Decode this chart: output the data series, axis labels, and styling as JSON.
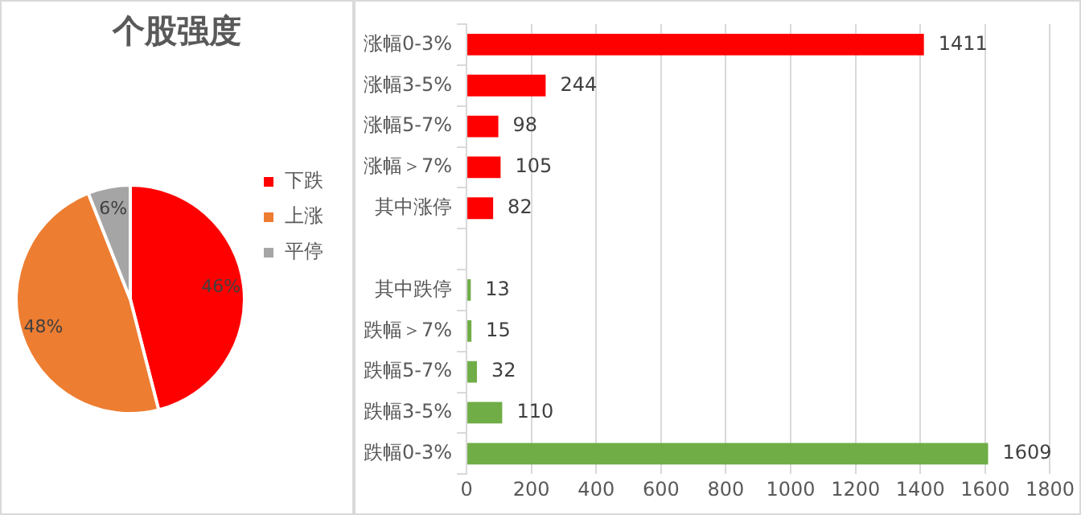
{
  "chart_data": [
    {
      "type": "pie",
      "title": "个股强度",
      "categories": [
        "下跌",
        "上涨",
        "平停"
      ],
      "values": [
        46,
        48,
        6
      ],
      "colors": [
        "#ff0000",
        "#ed7d31",
        "#a5a5a5"
      ],
      "value_labels": [
        "46%",
        "48%",
        "6%"
      ],
      "legend": "right"
    },
    {
      "type": "bar",
      "orientation": "horizontal",
      "categories": [
        "涨幅0-3%",
        "涨幅3-5%",
        "涨幅5-7%",
        "涨幅＞7%",
        "其中涨停",
        null,
        "其中跌停",
        "跌幅＞7%",
        "跌幅5-7%",
        "跌幅3-5%",
        "跌幅0-3%"
      ],
      "values": [
        1411,
        244,
        98,
        105,
        82,
        null,
        13,
        15,
        32,
        110,
        1609
      ],
      "colors": [
        "#ff0000",
        "#ff0000",
        "#ff0000",
        "#ff0000",
        "#ff0000",
        null,
        "#70ad47",
        "#70ad47",
        "#70ad47",
        "#70ad47",
        "#70ad47"
      ],
      "xlim": [
        0,
        1800
      ],
      "xticks": [
        0,
        200,
        400,
        600,
        800,
        1000,
        1200,
        1400,
        1600,
        1800
      ],
      "grid": "x",
      "data_labels": true
    }
  ]
}
